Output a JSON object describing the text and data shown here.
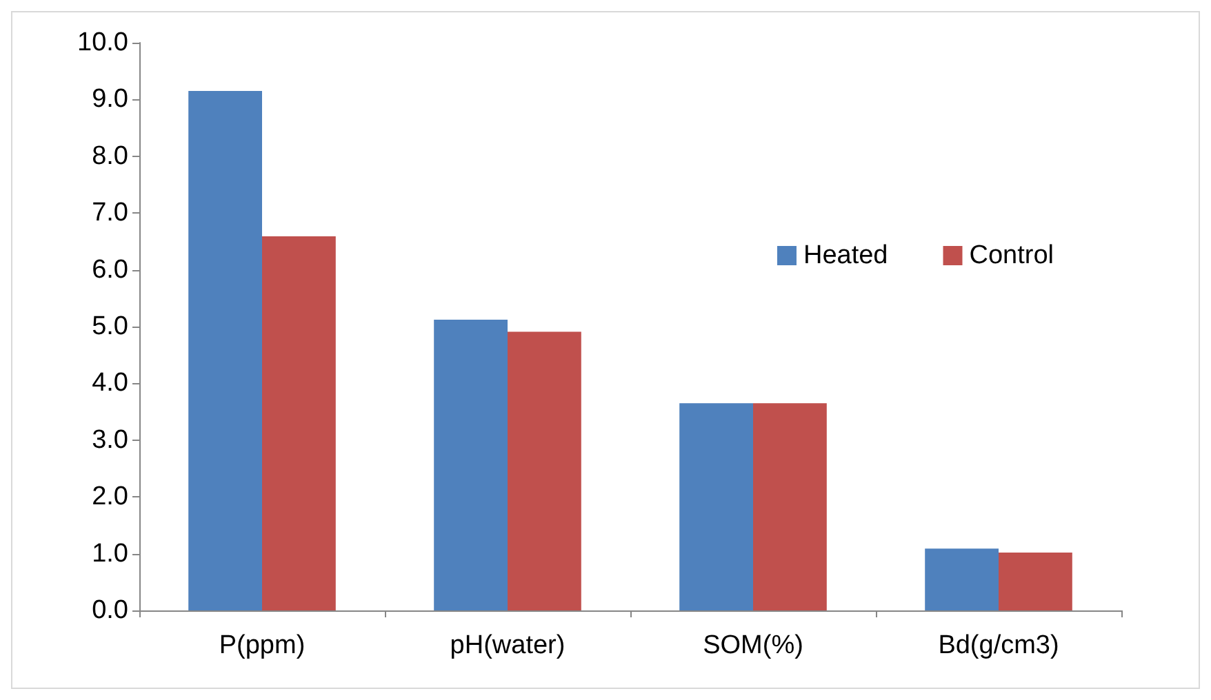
{
  "chart_data": {
    "type": "bar",
    "categories": [
      "P(ppm)",
      "pH(water)",
      "SOM(%)",
      "Bd(g/cm3)"
    ],
    "series": [
      {
        "name": "Heated",
        "color": "#4f81bd",
        "values": [
          9.15,
          5.12,
          3.65,
          1.09
        ]
      },
      {
        "name": "Control",
        "color": "#c0504d",
        "values": [
          6.59,
          4.91,
          3.65,
          1.02
        ]
      }
    ],
    "ylim": [
      0,
      10
    ],
    "yticks": [
      {
        "value": 0,
        "label": "0.0"
      },
      {
        "value": 1,
        "label": "1.0"
      },
      {
        "value": 2,
        "label": "2.0"
      },
      {
        "value": 3,
        "label": "3.0"
      },
      {
        "value": 4,
        "label": "4.0"
      },
      {
        "value": 5,
        "label": "5.0"
      },
      {
        "value": 6,
        "label": "6.0"
      },
      {
        "value": 7,
        "label": "7.0"
      },
      {
        "value": 8,
        "label": "8.0"
      },
      {
        "value": 9,
        "label": "9.0"
      },
      {
        "value": 10,
        "label": "10.0"
      }
    ],
    "grid": false,
    "legend": "top right"
  }
}
